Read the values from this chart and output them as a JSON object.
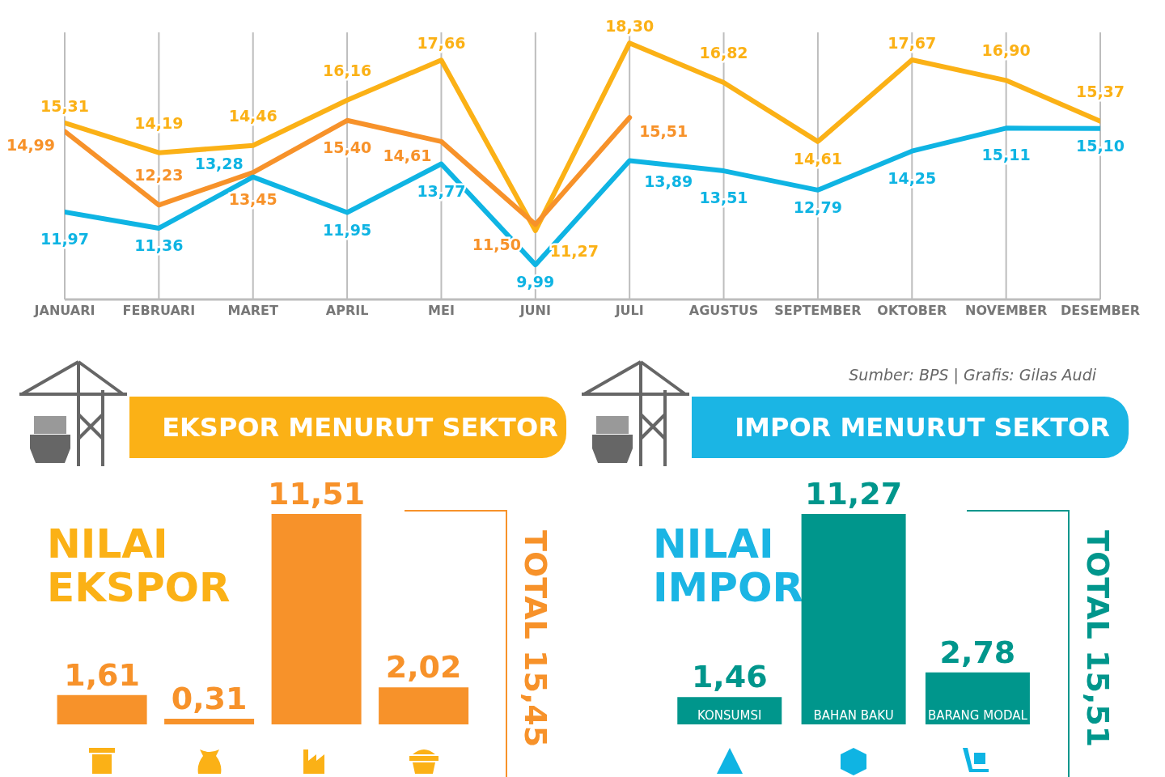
{
  "chart_data": [
    {
      "type": "line",
      "categories": [
        "JANUARI",
        "FEBRUARI",
        "MARET",
        "APRIL",
        "MEI",
        "JUNI",
        "JULI",
        "AGUSTUS",
        "SEPTEMBER",
        "OKTOBER",
        "NOVEMBER",
        "DESEMBER"
      ],
      "grid": "x",
      "series": [
        {
          "color": "#fbb116",
          "values": [
            15.31,
            14.19,
            14.46,
            16.16,
            17.66,
            11.27,
            18.3,
            16.82,
            14.61,
            17.67,
            16.9,
            15.37
          ],
          "value_labels": [
            "15,31",
            "14,19",
            "14,46",
            "16,16",
            "17,66",
            "11,27",
            "18,30",
            "16,82",
            "14,61",
            "17,67",
            "16,90",
            "15,37"
          ]
        },
        {
          "color": "#f7922a",
          "values": [
            14.99,
            12.23,
            13.45,
            15.4,
            14.61,
            11.5,
            15.51,
            null,
            null,
            null,
            null,
            null
          ],
          "value_labels": [
            "14,99",
            "12,23",
            "13,45",
            "15,40",
            "14,61",
            "11,50",
            "15,51",
            null,
            null,
            null,
            null,
            null
          ]
        },
        {
          "color": "#0fb4e3",
          "values": [
            11.97,
            11.36,
            13.28,
            11.95,
            13.77,
            9.99,
            13.89,
            13.51,
            12.79,
            14.25,
            15.11,
            15.1
          ],
          "value_labels": [
            "11,97",
            "11,36",
            "13,28",
            "11,95",
            "13,77",
            "9,99",
            "13,89",
            "13,51",
            "12,79",
            "14,25",
            "15,11",
            "15,10"
          ]
        }
      ]
    },
    {
      "type": "bar",
      "title": "EKSPOR MENURUT SEKTOR",
      "categories": [
        null,
        null,
        null,
        null
      ],
      "values": [
        1.61,
        0.31,
        11.51,
        2.02
      ],
      "color": "#f7922a",
      "value_labels": [
        "1,61",
        "0,31",
        "11,51",
        "2,02"
      ],
      "annotations": [
        "NILAI EKSPOR",
        "TOTAL 15,45"
      ]
    },
    {
      "type": "bar",
      "title": "IMPOR MENURUT SEKTOR",
      "categories": [
        "KONSUMSI",
        "BAHAN BAKU",
        "BARANG MODAL"
      ],
      "values": [
        1.46,
        11.27,
        2.78
      ],
      "color": "#00968c",
      "value_labels": [
        "1,46",
        "11,27",
        "2,78"
      ],
      "annotations": [
        "NILAI IMPOR",
        "TOTAL 15,51",
        "Sumber: BPS | Grafis: Gilas Audi"
      ]
    }
  ]
}
